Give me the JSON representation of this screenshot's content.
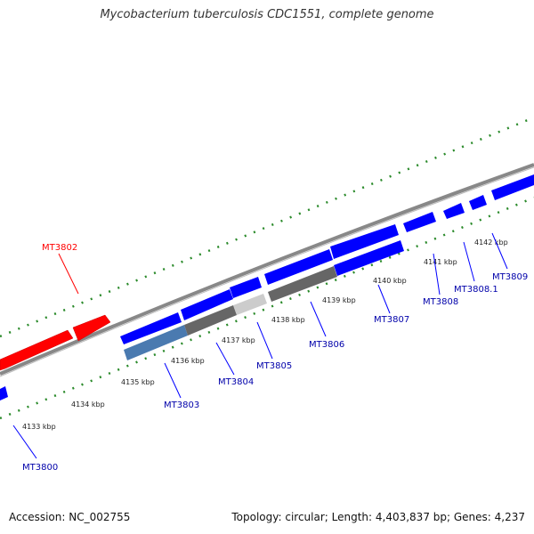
{
  "title": "Mycobacterium tuberculosis CDC1551, complete genome",
  "footer": {
    "accession": "Accession: NC_002755",
    "summary": "Topology: circular; Length: 4,403,837 bp; Genes: 4,237"
  },
  "colors": {
    "forward_gene": "#ff0000",
    "reverse_gene": "#0000ff",
    "backbone": "#888888",
    "ticks": "#2a8a2a",
    "feature_dark": "#666666",
    "feature_light": "#cccccc",
    "feature_blue": "#4a7ab0"
  },
  "kbp_labels": [
    "4133 kbp",
    "4134 kbp",
    "4135 kbp",
    "4136 kbp",
    "4137 kbp",
    "4138 kbp",
    "4139 kbp",
    "4140 kbp",
    "4141 kbp",
    "4142 kbp"
  ],
  "gene_labels": {
    "MT3802": "MT3802",
    "MT3800": "MT3800",
    "MT3803": "MT3803",
    "MT3804": "MT3804",
    "MT3805": "MT3805",
    "MT3806": "MT3806",
    "MT3807": "MT3807",
    "MT3808": "MT3808",
    "MT3808_1": "MT3808.1",
    "MT3809": "MT3809"
  }
}
